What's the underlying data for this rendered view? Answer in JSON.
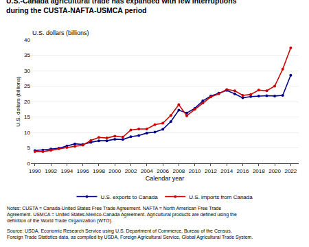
{
  "chart_data": {
    "type": "line",
    "title": "U.S.-Canada agricultural trade has expanded with few interruptions\nduring the CUSTA-NAFTA-USMCA period",
    "ylabel": "U.S. dollars (billions)",
    "xlabel": "Calendar year",
    "x": [
      1990,
      1991,
      1992,
      1993,
      1994,
      1995,
      1996,
      1997,
      1998,
      1999,
      2000,
      2001,
      2002,
      2003,
      2004,
      2005,
      2006,
      2007,
      2008,
      2009,
      2010,
      2011,
      2012,
      2013,
      2014,
      2015,
      2016,
      2017,
      2018,
      2019,
      2020,
      2021,
      2022
    ],
    "series": [
      {
        "name": "U.S. exports to Canada",
        "color": "#00008B",
        "marker": "circle",
        "values": [
          4.1,
          4.3,
          4.6,
          4.9,
          5.6,
          6.3,
          6.1,
          6.8,
          7.3,
          7.3,
          7.8,
          7.7,
          8.6,
          9.0,
          9.8,
          10.1,
          11.0,
          13.5,
          17.2,
          16.3,
          17.8,
          20.2,
          21.8,
          22.7,
          23.6,
          22.5,
          21.2,
          21.6,
          21.8,
          21.9,
          21.8,
          22.0,
          28.5
        ]
      },
      {
        "name": "U.S. imports from Canada",
        "color": "#CC0000",
        "marker": "circle",
        "values": [
          3.8,
          3.8,
          4.2,
          4.7,
          5.1,
          5.5,
          5.9,
          7.4,
          8.4,
          8.2,
          8.8,
          8.5,
          10.8,
          11.1,
          11.1,
          12.5,
          13.0,
          15.5,
          19.0,
          15.4,
          17.5,
          19.5,
          21.5,
          22.5,
          23.9,
          23.5,
          22.0,
          22.3,
          23.7,
          23.5,
          25.0,
          30.5,
          37.4
        ]
      }
    ],
    "xlim": [
      1989.5,
      2023.0
    ],
    "xticks": [
      1990,
      1992,
      1994,
      1996,
      1998,
      2000,
      2002,
      2004,
      2006,
      2008,
      2010,
      2012,
      2014,
      2016,
      2018,
      2020,
      2022
    ],
    "ylim": [
      0,
      40
    ],
    "yticks": [
      0,
      5,
      10,
      15,
      20,
      25,
      30,
      35,
      40
    ],
    "grid": true,
    "legend": "bottom",
    "annotations": [
      "Notes: CUSTA = Canada-United States Free Trade Agreement. NAFTA = North American Free Trade\nAgreement. USMCA = United States-Mexico-Canada Agreement. Agricultural products are defined using the\ndefinition of the World Trade Organization (WTO).",
      "Source: USDA, Economic Research Service using U.S. Department of Commerce, Bureau of the Census,\nForeign Trade Statistics data, as compiled by USDA, Foreign Agricultural Service, Global Agricultural Trade System."
    ]
  }
}
